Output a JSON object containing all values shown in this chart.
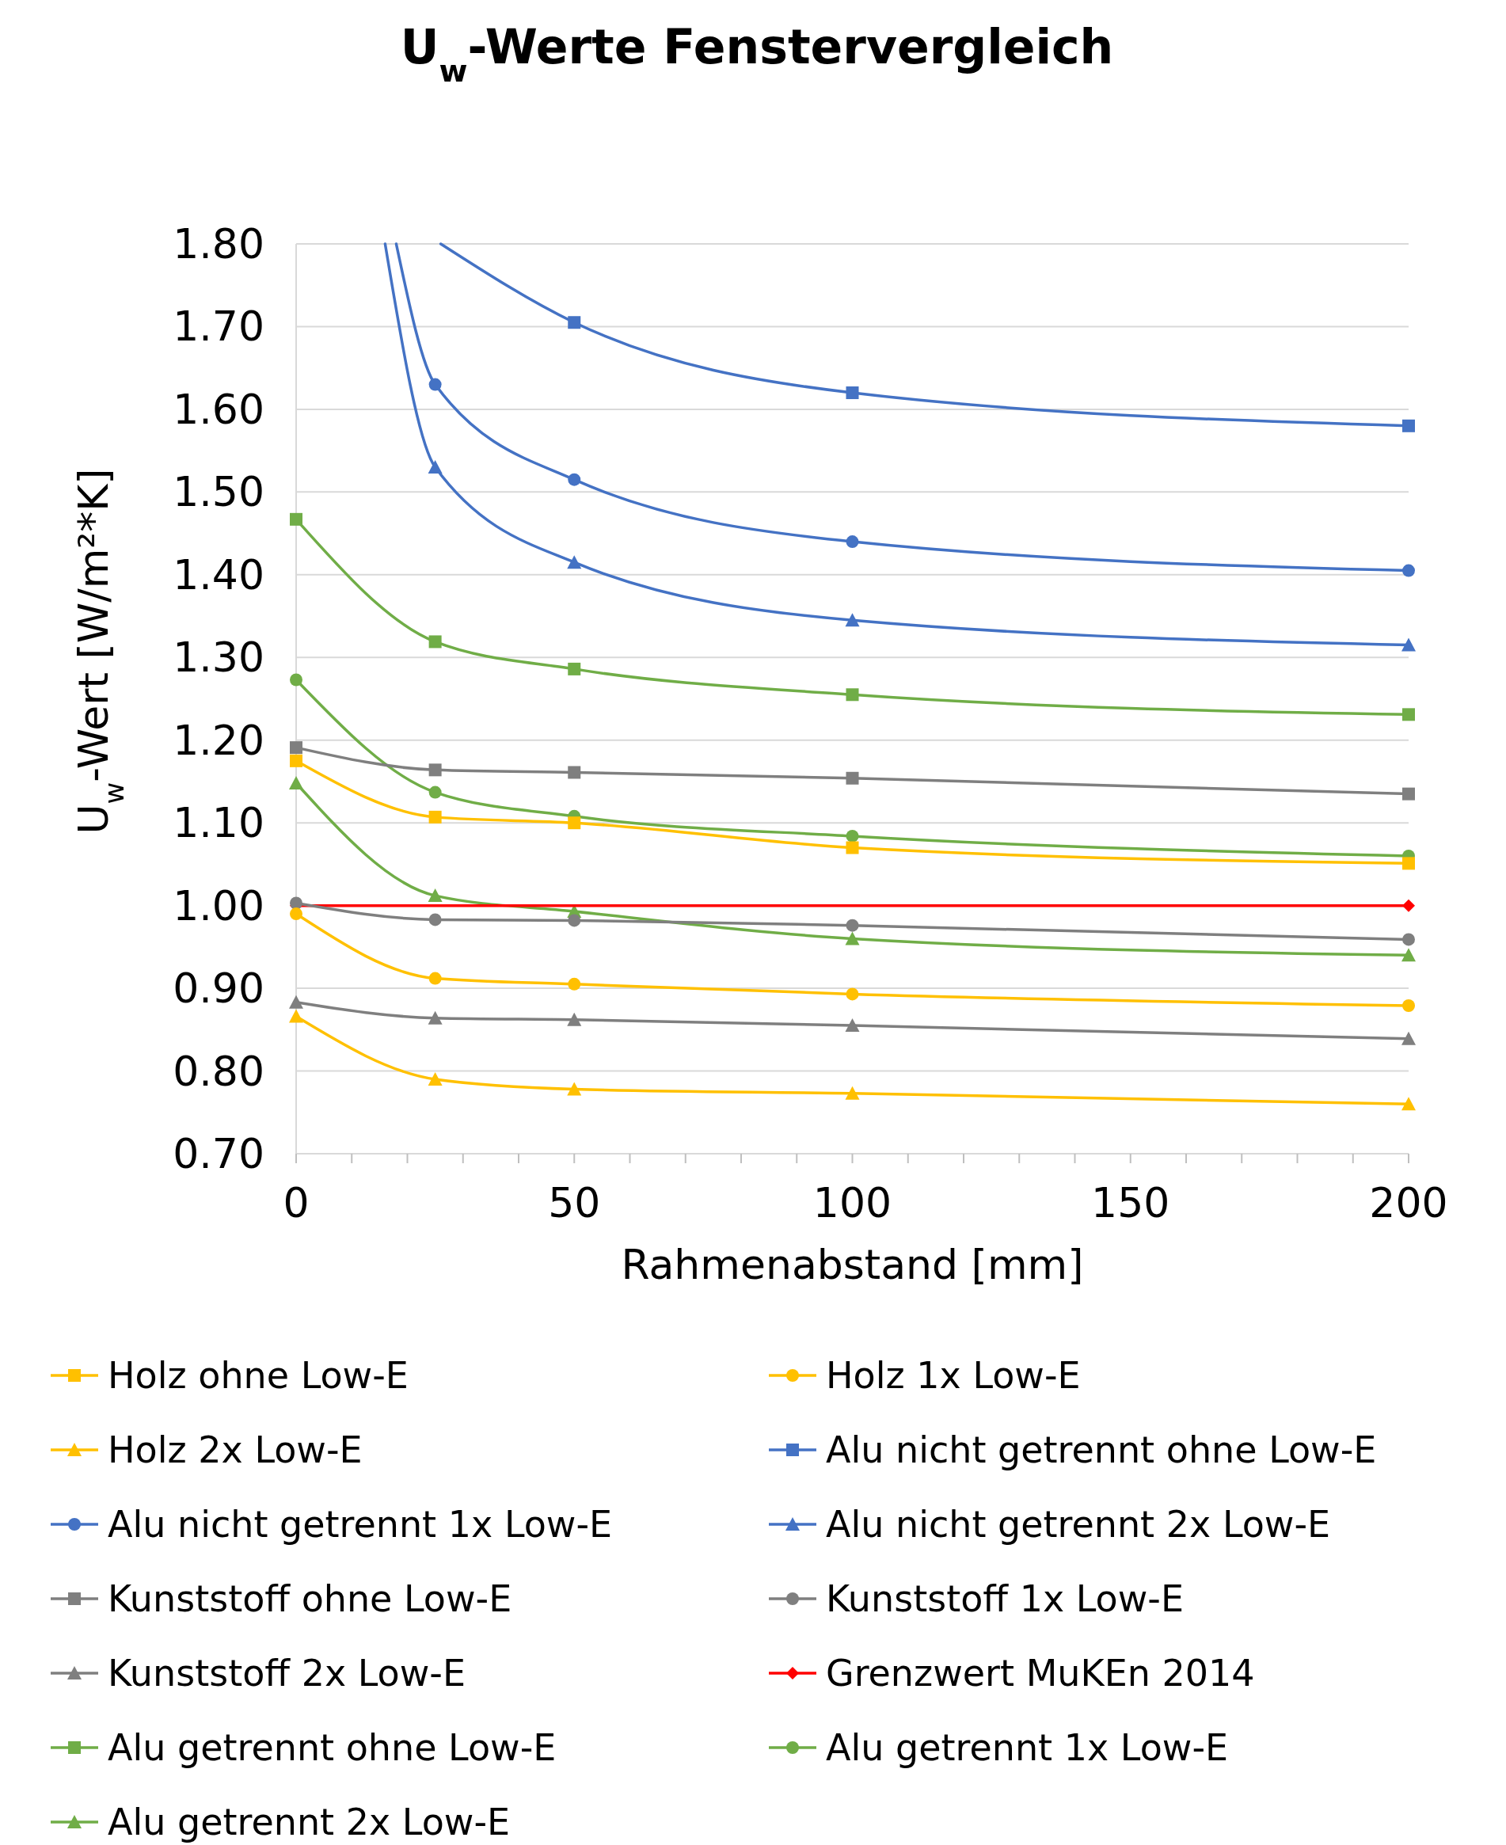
{
  "chart_data": {
    "type": "line",
    "title": "U$_{w}$-Werte Fenstervergleich",
    "xlabel": "Rahmenabstand [mm]",
    "ylabel": "U$_{w}$-Wert [W/m²*K]",
    "xlim": [
      0,
      200
    ],
    "ylim": [
      0.7,
      1.8
    ],
    "xticks": [
      0,
      {
        "value": 10,
        "label": null
      },
      {
        "value": 20,
        "label": null
      },
      {
        "value": 30,
        "label": null
      },
      {
        "value": 40,
        "label": null
      },
      50,
      {
        "value": 60,
        "label": null
      },
      {
        "value": 70,
        "label": null
      },
      {
        "value": 80,
        "label": null
      },
      {
        "value": 90,
        "label": null
      },
      100,
      {
        "value": 110,
        "label": null
      },
      {
        "value": 120,
        "label": null
      },
      {
        "value": 130,
        "label": null
      },
      {
        "value": 140,
        "label": null
      },
      150,
      {
        "value": 160,
        "label": null
      },
      {
        "value": 170,
        "label": null
      },
      {
        "value": 180,
        "label": null
      },
      {
        "value": 190,
        "label": null
      },
      200
    ],
    "yticks": [
      {
        "value": 0.7,
        "label": "0.70"
      },
      {
        "value": 0.8,
        "label": "0.80"
      },
      {
        "value": 0.9,
        "label": "0.90"
      },
      {
        "value": 1.0,
        "label": "1.00"
      },
      {
        "value": 1.1,
        "label": "1.10"
      },
      {
        "value": 1.2,
        "label": "1.20"
      },
      {
        "value": 1.3,
        "label": "1.30"
      },
      {
        "value": 1.4,
        "label": "1.40"
      },
      {
        "value": 1.5,
        "label": "1.50"
      },
      {
        "value": 1.6,
        "label": "1.60"
      },
      {
        "value": 1.7,
        "label": "1.70"
      },
      {
        "value": 1.8,
        "label": "1.80"
      }
    ],
    "grid": "y",
    "legend": "bottom",
    "line_style": "solid",
    "x": [
      0,
      25,
      50,
      100,
      200
    ],
    "series": [
      {
        "name": "Holz ohne Low-E",
        "color": "#ffc000",
        "marker": "square",
        "values": [
          1.175,
          1.107,
          1.1,
          1.07,
          1.051
        ]
      },
      {
        "name": "Holz 1x Low-E",
        "color": "#ffc000",
        "marker": "circle",
        "values": [
          0.99,
          0.912,
          0.905,
          0.893,
          0.879
        ]
      },
      {
        "name": "Holz 2x Low-E",
        "color": "#ffc000",
        "marker": "triangle",
        "values": [
          0.866,
          0.79,
          0.778,
          0.773,
          0.76
        ]
      },
      {
        "name": "Alu nicht getrennt ohne Low-E",
        "color": "#4472c4",
        "marker": "square",
        "x": [
          26,
          50,
          100,
          200
        ],
        "values": [
          1.8,
          1.705,
          1.62,
          1.58
        ]
      },
      {
        "name": "Alu nicht getrennt 1x Low-E",
        "color": "#4472c4",
        "marker": "circle",
        "x": [
          18,
          25,
          50,
          100,
          200
        ],
        "values": [
          1.8,
          1.63,
          1.515,
          1.44,
          1.405
        ]
      },
      {
        "name": "Alu nicht getrennt 2x Low-E",
        "color": "#4472c4",
        "marker": "triangle",
        "x": [
          16,
          25,
          50,
          100,
          200
        ],
        "values": [
          1.8,
          1.53,
          1.415,
          1.345,
          1.315
        ]
      },
      {
        "name": "Kunststoff ohne Low-E",
        "color": "#7f7f7f",
        "marker": "square",
        "values": [
          1.191,
          1.164,
          1.161,
          1.154,
          1.135
        ]
      },
      {
        "name": "Kunststoff 1x Low-E",
        "color": "#7f7f7f",
        "marker": "circle",
        "values": [
          1.003,
          0.983,
          0.982,
          0.976,
          0.959
        ]
      },
      {
        "name": "Kunststoff 2x Low-E",
        "color": "#7f7f7f",
        "marker": "triangle",
        "values": [
          0.883,
          0.864,
          0.862,
          0.855,
          0.839
        ]
      },
      {
        "name": "Grenzwert MuKEn 2014",
        "color": "#ff0000",
        "marker": "diamond",
        "x": [
          0,
          200
        ],
        "values": [
          1.0,
          1.0
        ]
      },
      {
        "name": "Alu getrennt ohne Low-E",
        "color": "#70ad47",
        "marker": "square",
        "values": [
          1.467,
          1.319,
          1.286,
          1.255,
          1.231
        ]
      },
      {
        "name": "Alu getrennt 1x Low-E",
        "color": "#70ad47",
        "marker": "circle",
        "values": [
          1.273,
          1.137,
          1.108,
          1.084,
          1.06
        ]
      },
      {
        "name": "Alu getrennt 2x Low-E",
        "color": "#70ad47",
        "marker": "triangle",
        "values": [
          1.148,
          1.012,
          0.993,
          0.96,
          0.94
        ]
      }
    ]
  }
}
